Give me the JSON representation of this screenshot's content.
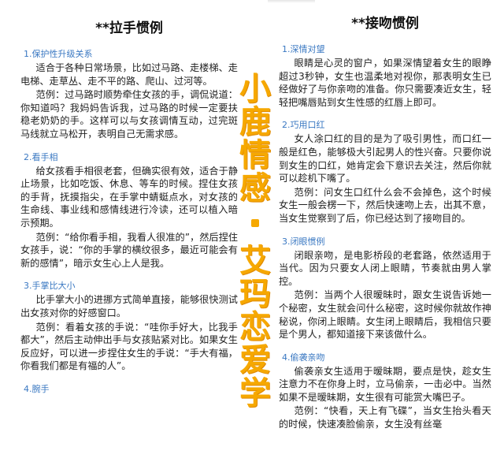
{
  "left": {
    "title": "**拉手惯例",
    "sections": [
      {
        "title": "1.保护性升级关系",
        "paras": [
          "适合于各种日常场景，比如过马路、走楼梯、走电梯、走草丛、走不平的路、爬山、过河等。",
          "范例：过马路时顺势牵住女孩的手，调侃说道：你知道吗？我妈妈告诉我，过马路的时候一定要扶稳老奶奶的手。这样可以与女孩调情互动，过完斑马线就立马松开，表明自己无需求感。"
        ]
      },
      {
        "title": "2.看手相",
        "paras": [
          "给女孩看手相很老套，但确实很有效，适合于静止场景，比如吃饭、休息、等车的时候。捏住女孩的手背，抚摸指尖，在手掌中蜻蜓点水，对女孩的生命线、事业线和感情线进行冷读，还可以植入暗示预期。",
          "范例：“给你看手相，我看人很准的”，然后捏住女孩手，说：“你的手掌的横纹很多，最近可能会有新的感情”，暗示女生心上人是我。"
        ]
      },
      {
        "title": "3.手掌比大小",
        "paras": [
          "比手掌大小的进挪方式简单直接，能够很快测试出女孩对你的好感窗口。",
          "范例：看着女孩的手说：“哇你手好大，比我手都大”，然后主动伸出手与女孩贴紧对比。如果女生反应好，可以进一步捏住女生的手说：“手大有福，你看我们都是有福的人”。"
        ]
      },
      {
        "title": "4.腕手",
        "paras": []
      }
    ]
  },
  "right": {
    "title": "**接吻惯例",
    "sections": [
      {
        "title": "1.深情对望",
        "paras": [
          "眼睛是心灵的窗户，如果深情望着女生的眼睁超过3秒钟，女生也温柔地对视你，那表明女生已经做好了与你亲吻的准备。你只需要凑近女生，轻轻把嘴唇贴到女生性感的红唇上即可。"
        ]
      },
      {
        "title": "2.巧用口红",
        "paras": [
          "女人涂口红的目的是为了吸引男性，而口红一般是红色，能够极大引起男人的性兴奋。只要你说到女生的口红，她肯定会下意识去关注，然后你就可以趁机下嘴了。",
          "范例：问女生口红什么会不会掉色，这个时候女生一般会楞一下，然后快速吻上去，出其不意，当女生觉察到了后，你已经达到了接吻目的。"
        ]
      },
      {
        "title": "3.闭眼惯例",
        "paras": [
          "闭眼亲吻，是电影桥段的老套路，依然适用于当代。因为只要女人闭上眼睛，节奏就由男人掌控。",
          "范例：当两个人很暧昧时，跟女生说告诉她一个秘密，女生就会问什么秘密，这时候你就故作神秘说，你闭上眼睛。女生闭上眼睛后，我相信只要是个男人，都知道接下来该做什么。"
        ]
      },
      {
        "title": "4.偷袭亲吻",
        "paras": [
          "偷袭亲女生适用于暧昧期，要点是快，趁女生注意力不在你身上时，立马偷亲，一击必中。当然如果不是暧昧期，女生很有可能赏大嘴巴子。",
          "范例：“快看，天上有飞碟”，当女生抬头看天的时候，快速凑脸偷亲，女生没有丝毫"
        ]
      }
    ]
  },
  "banner": {
    "chars": [
      "小",
      "鹿",
      "情",
      "感",
      "艾",
      "玛",
      "恋",
      "爱",
      "学"
    ],
    "color": "#f6a800"
  }
}
